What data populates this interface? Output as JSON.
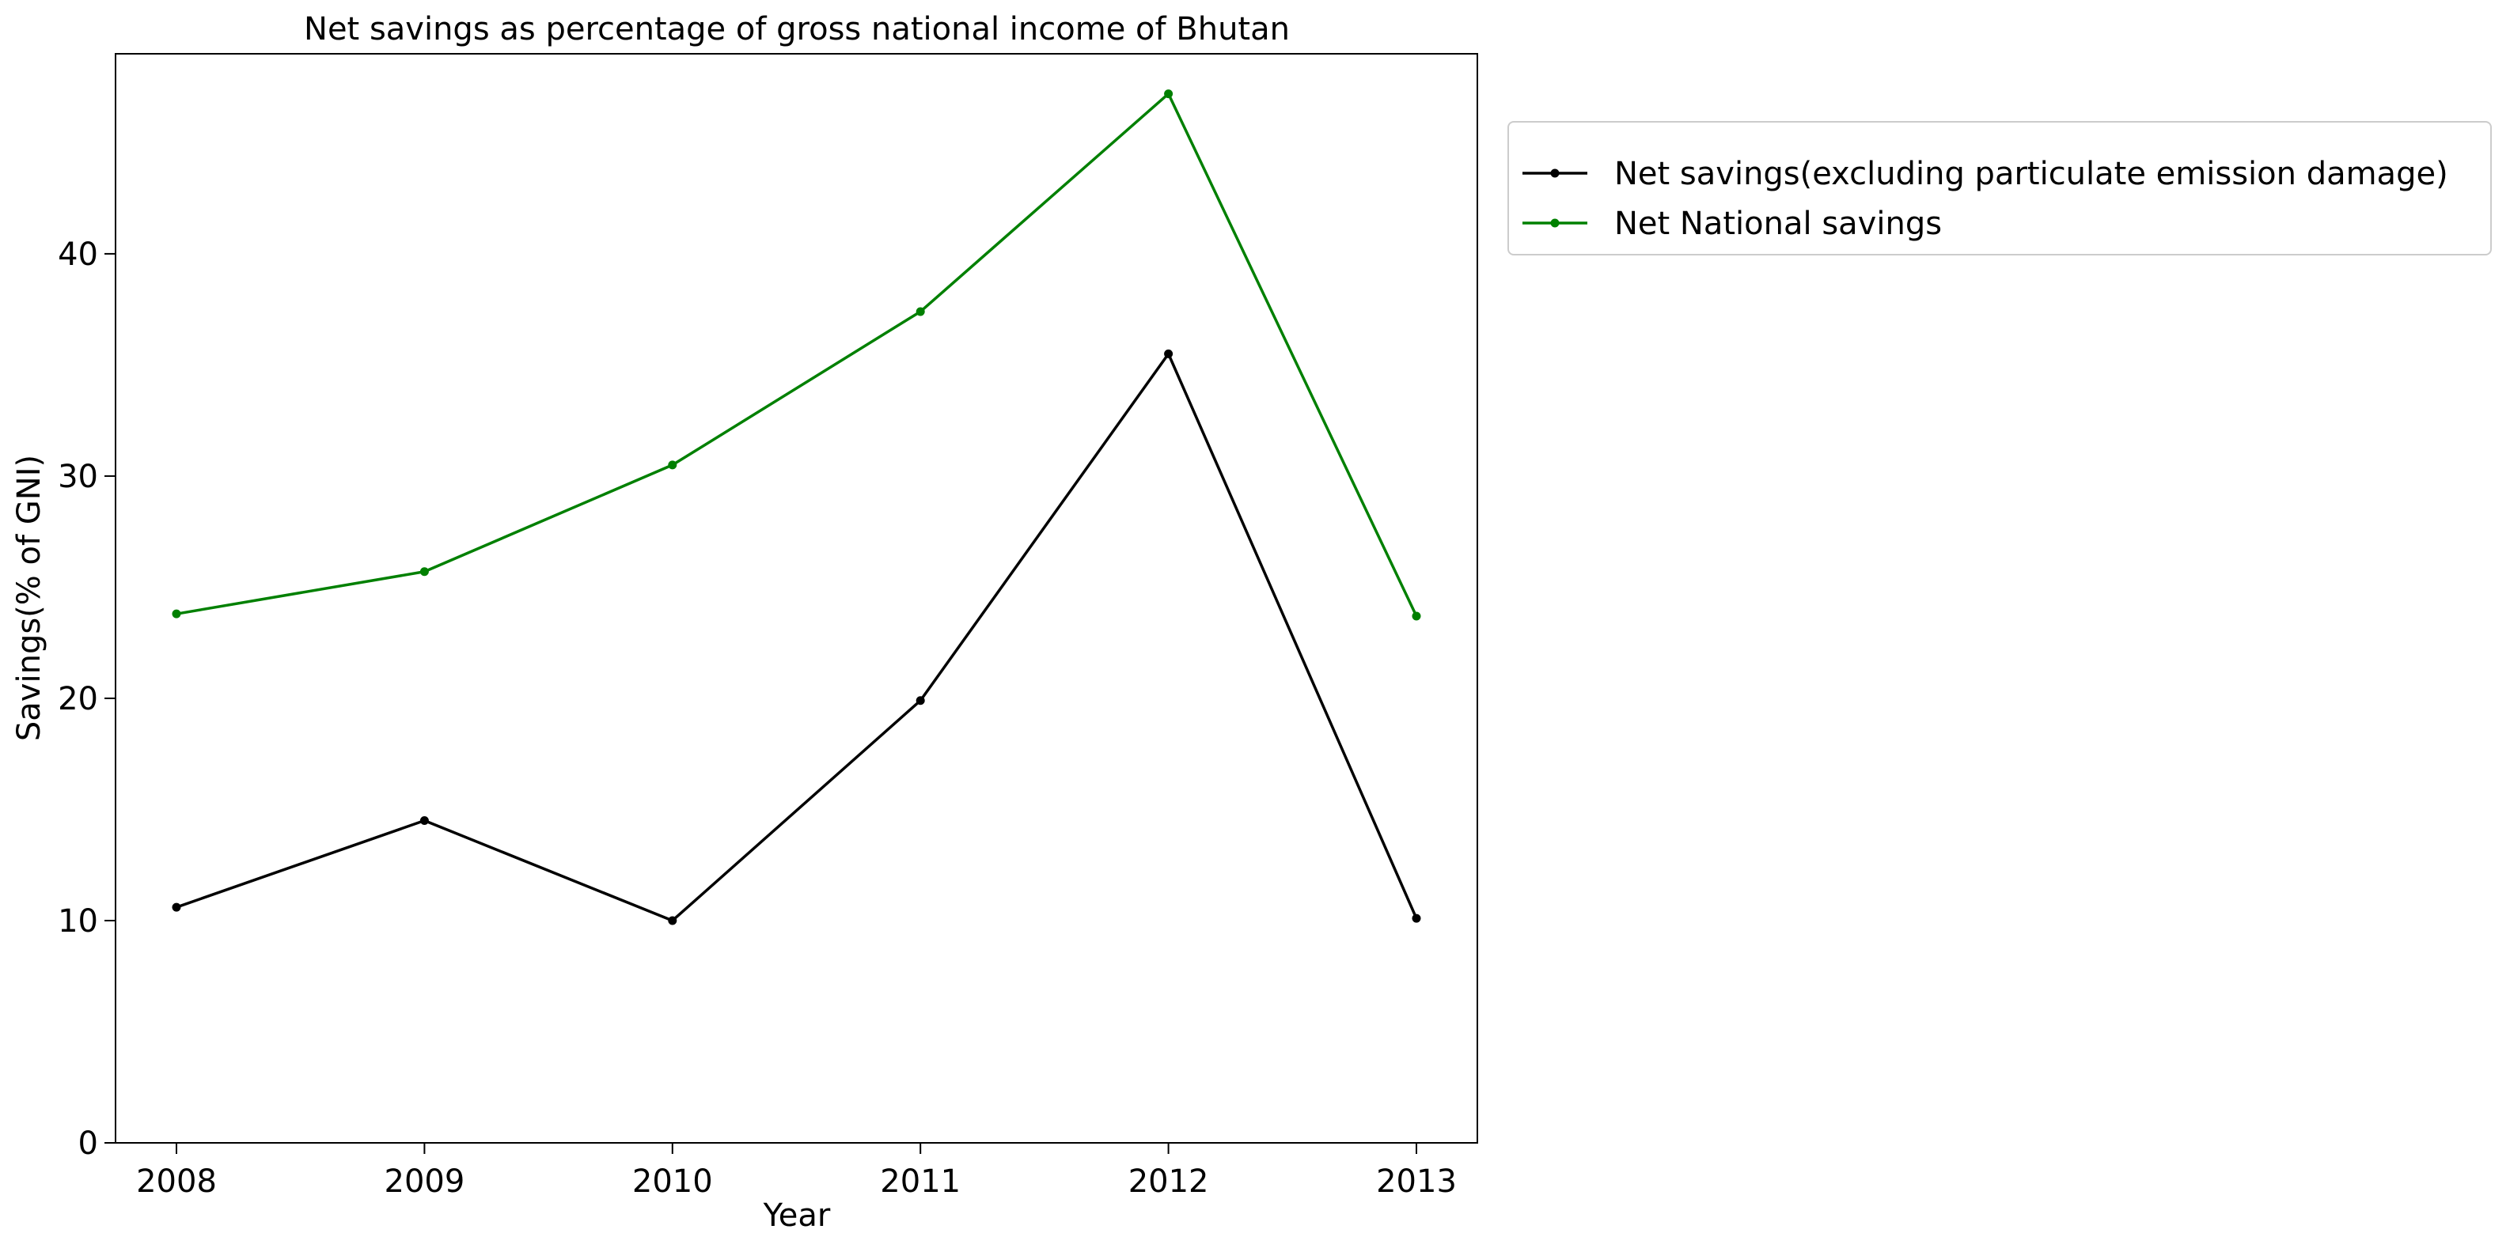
{
  "chart_data": {
    "type": "line",
    "title": "Net savings as percentage of gross national income of Bhutan",
    "xlabel": "Year",
    "ylabel": "Savings(% of GNI)",
    "x": [
      "2008",
      "2009",
      "2010",
      "2011",
      "2012",
      "2013"
    ],
    "ylim": [
      0,
      49
    ],
    "yticks": [
      0,
      10,
      20,
      30,
      40
    ],
    "grid": false,
    "legend_position": "outside-top-right",
    "series": [
      {
        "name": "Net savings(excluding particulate emission damage)",
        "color": "#000000",
        "marker": "circle",
        "values": [
          10.6,
          14.5,
          10.0,
          19.9,
          35.5,
          10.1
        ]
      },
      {
        "name": "Net National savings",
        "color": "#008000",
        "marker": "circle",
        "values": [
          23.8,
          25.7,
          30.5,
          37.4,
          47.2,
          23.7
        ]
      }
    ]
  }
}
